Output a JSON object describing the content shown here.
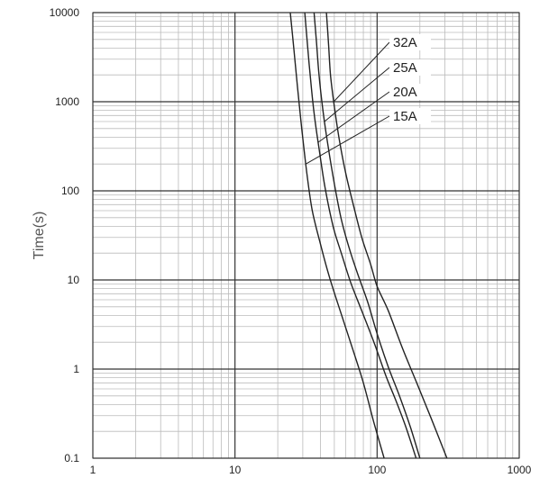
{
  "chart_data": {
    "type": "line",
    "title": "",
    "xlabel": "",
    "ylabel": "Time(s)",
    "x_scale": "log",
    "y_scale": "log",
    "xlim": [
      1,
      1000
    ],
    "ylim": [
      0.1,
      10000
    ],
    "grid": true,
    "x_ticks": [
      "1",
      "10",
      "100",
      "1000"
    ],
    "y_ticks": [
      "0.1",
      "1",
      "10",
      "100",
      "1000",
      "10000"
    ],
    "series": [
      {
        "name": "15A",
        "x": [
          24.5,
          26,
          27.5,
          29.5,
          32,
          35,
          40,
          46,
          55,
          68,
          80,
          95,
          112
        ],
        "y": [
          10000,
          3800,
          1500,
          500,
          160,
          60,
          25,
          11,
          4.5,
          1.6,
          0.7,
          0.25,
          0.1
        ]
      },
      {
        "name": "20A",
        "x": [
          31,
          32.5,
          34,
          36,
          39,
          43,
          49,
          56,
          65,
          78,
          95,
          115,
          135,
          160,
          188
        ],
        "y": [
          10000,
          4000,
          1800,
          750,
          300,
          110,
          40,
          20,
          9.5,
          4.5,
          2,
          0.85,
          0.45,
          0.22,
          0.1
        ]
      },
      {
        "name": "25A",
        "x": [
          36,
          37.5,
          39,
          41.5,
          45,
          50,
          56,
          64,
          74,
          86,
          100,
          120,
          145,
          172,
          200
        ],
        "y": [
          10000,
          4500,
          2000,
          820,
          330,
          120,
          48,
          22,
          11,
          5.6,
          2.5,
          1.05,
          0.48,
          0.22,
          0.1
        ]
      },
      {
        "name": "32A",
        "x": [
          44,
          45.5,
          47,
          50,
          54,
          60,
          68,
          78,
          90,
          100,
          120,
          150,
          190,
          240,
          310
        ],
        "y": [
          10000,
          4500,
          2000,
          880,
          390,
          160,
          70,
          30,
          15,
          8.5,
          4.5,
          1.75,
          0.7,
          0.28,
          0.1
        ]
      }
    ]
  }
}
